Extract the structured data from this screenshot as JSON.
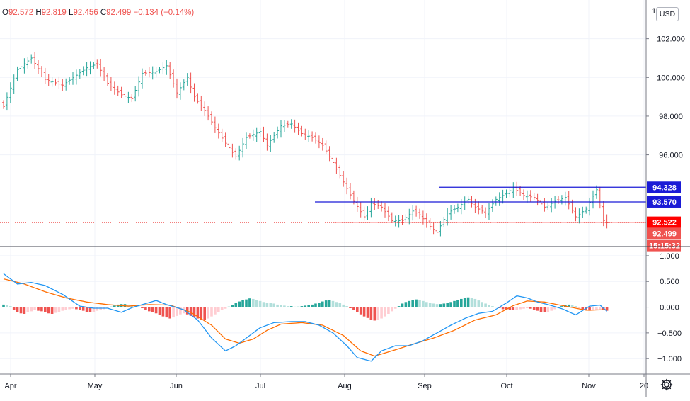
{
  "ohlc_label": {
    "o_label": "O",
    "o": "92.572",
    "h_label": "H",
    "h": "92.819",
    "l_label": "L",
    "l": "92.456",
    "c_label": "C",
    "c": "92.499",
    "change": "−0.134 (−0.14%)"
  },
  "currency": "USD",
  "top_price_tick_partial": "1",
  "colors": {
    "up": "#26a69a",
    "down": "#ef5350",
    "macd_line": "#2196f3",
    "signal_line": "#ff6d00",
    "resistance": "#1b1bd6",
    "support": "#ff0000",
    "hist_up_strong": "#26a69a",
    "hist_up_weak": "#b2dfdb",
    "hist_down_strong": "#ef5350",
    "hist_down_weak": "#ffcdd2"
  },
  "icons": {
    "settings": "gear-icon"
  },
  "chart_data": [
    {
      "type": "candlestick",
      "subtype": "ohlc-bars",
      "price_axis": {
        "ticks": [
          "102.000",
          "100.000",
          "98.000",
          "96.000"
        ],
        "ylim": [
          91.3,
          104.0
        ]
      },
      "time_axis": {
        "ticks": [
          "Apr",
          "May",
          "Jun",
          "Jul",
          "Aug",
          "Sep",
          "Oct",
          "Nov",
          "20"
        ]
      },
      "price_path": [
        [
          0,
          98.5
        ],
        [
          4,
          100.4
        ],
        [
          8,
          101.0
        ],
        [
          12,
          99.9
        ],
        [
          17,
          99.6
        ],
        [
          24,
          100.5
        ],
        [
          27,
          100.7
        ],
        [
          30,
          99.7
        ],
        [
          34,
          99.1
        ],
        [
          37,
          98.9
        ],
        [
          40,
          100.2
        ],
        [
          44,
          100.3
        ],
        [
          47,
          100.6
        ],
        [
          50,
          99.2
        ],
        [
          53,
          100.0
        ],
        [
          55,
          99.0
        ],
        [
          58,
          98.3
        ],
        [
          61,
          97.4
        ],
        [
          64,
          96.6
        ],
        [
          67,
          95.9
        ],
        [
          70,
          96.9
        ],
        [
          74,
          97.2
        ],
        [
          76,
          96.5
        ],
        [
          80,
          97.5
        ],
        [
          83,
          97.6
        ],
        [
          86,
          97.1
        ],
        [
          89,
          96.9
        ],
        [
          92,
          96.5
        ],
        [
          95,
          95.6
        ],
        [
          98,
          94.6
        ],
        [
          101,
          93.6
        ],
        [
          104,
          92.8
        ],
        [
          106,
          93.5
        ],
        [
          109,
          93.3
        ],
        [
          112,
          92.6
        ],
        [
          115,
          92.6
        ],
        [
          118,
          93.1
        ],
        [
          120,
          92.9
        ],
        [
          123,
          92.3
        ],
        [
          125,
          92.0
        ],
        [
          128,
          93.0
        ],
        [
          131,
          93.3
        ],
        [
          134,
          93.7
        ],
        [
          136,
          93.3
        ],
        [
          139,
          93.0
        ],
        [
          142,
          93.7
        ],
        [
          145,
          94.0
        ],
        [
          147,
          94.3
        ],
        [
          150,
          93.9
        ],
        [
          153,
          93.8
        ],
        [
          156,
          93.3
        ],
        [
          159,
          93.6
        ],
        [
          162,
          93.8
        ],
        [
          165,
          92.8
        ],
        [
          168,
          93.2
        ],
        [
          171,
          94.2
        ],
        [
          173,
          92.6
        ],
        [
          174,
          92.49
        ]
      ],
      "horizontal_levels": [
        {
          "label": "94.328",
          "price": 94.328,
          "color": "#1b1bd6",
          "text_color": "#ffffff"
        },
        {
          "label": "93.570",
          "price": 93.57,
          "color": "#1b1bd6",
          "text_color": "#ffffff"
        },
        {
          "label": "92.522",
          "price": 92.522,
          "color": "#ff0000",
          "text_color": "#ffffff"
        }
      ],
      "last_price": {
        "label": "92.499",
        "price": 92.499,
        "countdown": "15:15:32",
        "color": "#ef5350"
      }
    },
    {
      "type": "line",
      "indicator": "MACD",
      "axis": {
        "ticks": [
          "1.000",
          "0.500",
          "0.000",
          "−0.500",
          "−1.000"
        ],
        "ylim": [
          -1.3,
          1.15
        ]
      },
      "macd_path": [
        [
          0,
          0.65
        ],
        [
          4,
          0.45
        ],
        [
          8,
          0.48
        ],
        [
          12,
          0.42
        ],
        [
          17,
          0.25
        ],
        [
          22,
          0.02
        ],
        [
          26,
          -0.02
        ],
        [
          30,
          -0.02
        ],
        [
          34,
          -0.1
        ],
        [
          37,
          -0.01
        ],
        [
          40,
          0.05
        ],
        [
          44,
          0.13
        ],
        [
          47,
          0.05
        ],
        [
          52,
          -0.05
        ],
        [
          56,
          -0.25
        ],
        [
          60,
          -0.6
        ],
        [
          64,
          -0.85
        ],
        [
          67,
          -0.75
        ],
        [
          70,
          -0.6
        ],
        [
          74,
          -0.4
        ],
        [
          78,
          -0.3
        ],
        [
          83,
          -0.28
        ],
        [
          87,
          -0.28
        ],
        [
          91,
          -0.35
        ],
        [
          95,
          -0.5
        ],
        [
          99,
          -0.75
        ],
        [
          102,
          -0.98
        ],
        [
          106,
          -1.05
        ],
        [
          109,
          -0.85
        ],
        [
          113,
          -0.75
        ],
        [
          117,
          -0.75
        ],
        [
          121,
          -0.65
        ],
        [
          125,
          -0.5
        ],
        [
          129,
          -0.35
        ],
        [
          133,
          -0.22
        ],
        [
          137,
          -0.12
        ],
        [
          141,
          -0.08
        ],
        [
          145,
          0.08
        ],
        [
          148,
          0.22
        ],
        [
          151,
          0.18
        ],
        [
          154,
          0.1
        ],
        [
          157,
          0.05
        ],
        [
          161,
          -0.03
        ],
        [
          165,
          -0.15
        ],
        [
          169,
          0.02
        ],
        [
          172,
          0.04
        ],
        [
          174,
          -0.08
        ]
      ],
      "signal_path": [
        [
          0,
          0.55
        ],
        [
          6,
          0.45
        ],
        [
          12,
          0.3
        ],
        [
          18,
          0.18
        ],
        [
          24,
          0.1
        ],
        [
          30,
          0.05
        ],
        [
          36,
          0.02
        ],
        [
          42,
          0.05
        ],
        [
          48,
          0.04
        ],
        [
          54,
          -0.1
        ],
        [
          60,
          -0.35
        ],
        [
          64,
          -0.62
        ],
        [
          68,
          -0.7
        ],
        [
          72,
          -0.62
        ],
        [
          76,
          -0.45
        ],
        [
          80,
          -0.33
        ],
        [
          86,
          -0.3
        ],
        [
          92,
          -0.35
        ],
        [
          98,
          -0.55
        ],
        [
          103,
          -0.85
        ],
        [
          107,
          -0.95
        ],
        [
          112,
          -0.85
        ],
        [
          118,
          -0.72
        ],
        [
          124,
          -0.6
        ],
        [
          130,
          -0.45
        ],
        [
          136,
          -0.25
        ],
        [
          142,
          -0.15
        ],
        [
          147,
          0.03
        ],
        [
          151,
          0.12
        ],
        [
          156,
          0.1
        ],
        [
          162,
          0.02
        ],
        [
          168,
          -0.06
        ],
        [
          174,
          -0.05
        ]
      ],
      "histogram": [
        0.05,
        0.04,
        0.02,
        -0.05,
        -0.1,
        -0.12,
        -0.13,
        -0.1,
        -0.08,
        -0.05,
        -0.07,
        -0.08,
        -0.1,
        -0.12,
        -0.13,
        -0.11,
        -0.09,
        -0.07,
        -0.05,
        -0.04,
        -0.03,
        -0.04,
        -0.05,
        -0.07,
        -0.09,
        -0.1,
        -0.09,
        -0.07,
        -0.06,
        -0.04,
        -0.02,
        0.01,
        0.03,
        0.05,
        0.06,
        0.06,
        0.05,
        0.04,
        0.02,
        0.01,
        -0.02,
        -0.05,
        -0.08,
        -0.1,
        -0.12,
        -0.15,
        -0.18,
        -0.2,
        -0.22,
        -0.2,
        -0.17,
        -0.14,
        -0.12,
        -0.14,
        -0.17,
        -0.19,
        -0.22,
        -0.24,
        -0.24,
        -0.22,
        -0.18,
        -0.14,
        -0.1,
        -0.06,
        -0.03,
        0.01,
        0.04,
        0.08,
        0.11,
        0.14,
        0.15,
        0.17,
        0.16,
        0.14,
        0.12,
        0.1,
        0.09,
        0.08,
        0.07,
        0.05,
        0.04,
        0.03,
        0.02,
        0.02,
        0.01,
        0.01,
        0.02,
        0.03,
        0.04,
        0.05,
        0.07,
        0.09,
        0.11,
        0.13,
        0.14,
        0.12,
        0.1,
        0.08,
        0.05,
        0.02,
        -0.02,
        -0.06,
        -0.1,
        -0.14,
        -0.18,
        -0.21,
        -0.24,
        -0.26,
        -0.25,
        -0.22,
        -0.18,
        -0.13,
        -0.08,
        -0.03,
        0.02,
        0.07,
        0.1,
        0.12,
        0.14,
        0.15,
        0.14,
        0.12,
        0.1,
        0.08,
        0.07,
        0.06,
        0.06,
        0.07,
        0.08,
        0.1,
        0.12,
        0.14,
        0.16,
        0.18,
        0.19,
        0.18,
        0.16,
        0.13,
        0.1,
        0.07,
        0.04,
        0.02,
        0.0,
        -0.02,
        -0.04,
        -0.05,
        -0.06,
        -0.06,
        -0.05,
        -0.04,
        -0.03,
        -0.02,
        -0.03,
        -0.05,
        -0.07,
        -0.09,
        -0.1,
        -0.09,
        -0.07,
        -0.04,
        -0.01,
        0.02,
        0.04,
        0.05,
        0.04,
        0.02,
        -0.01,
        -0.04,
        -0.06,
        -0.07,
        -0.06,
        -0.05,
        -0.04,
        -0.05,
        -0.07
      ]
    }
  ]
}
